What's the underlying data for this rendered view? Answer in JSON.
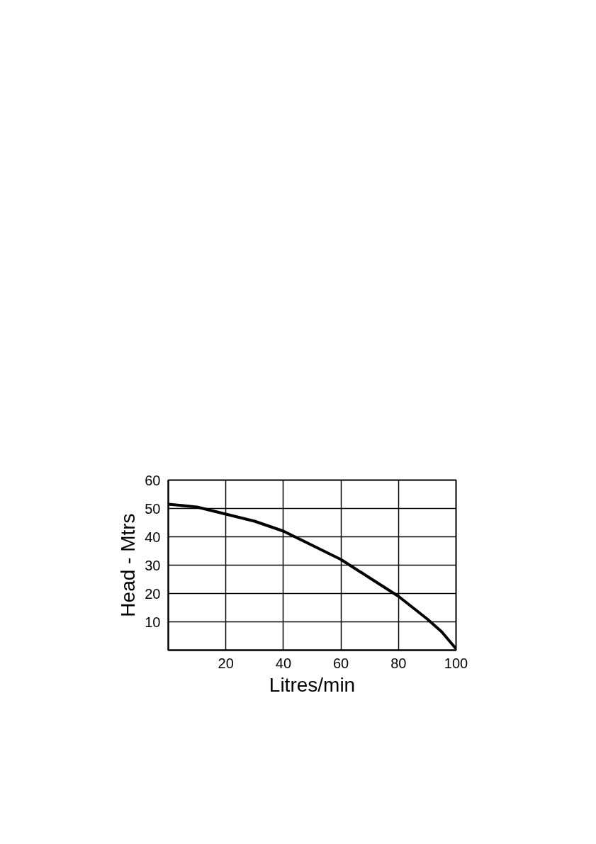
{
  "chart_data": {
    "type": "line",
    "xlabel": "Litres/min",
    "ylabel": "Head - Mtrs",
    "x": [
      0,
      10,
      20,
      30,
      40,
      50,
      60,
      70,
      80,
      90,
      95,
      100
    ],
    "series": [
      {
        "color": "#000000",
        "values": [
          51.5,
          50.5,
          48,
          45.5,
          42,
          37,
          32,
          25.5,
          19,
          11,
          6.5,
          0.5
        ]
      }
    ],
    "xlim": [
      0,
      100
    ],
    "ylim": [
      0,
      60
    ],
    "xticks": [
      20,
      40,
      60,
      80,
      100
    ],
    "yticks": [
      10,
      20,
      30,
      40,
      50,
      60
    ],
    "grid": true
  }
}
